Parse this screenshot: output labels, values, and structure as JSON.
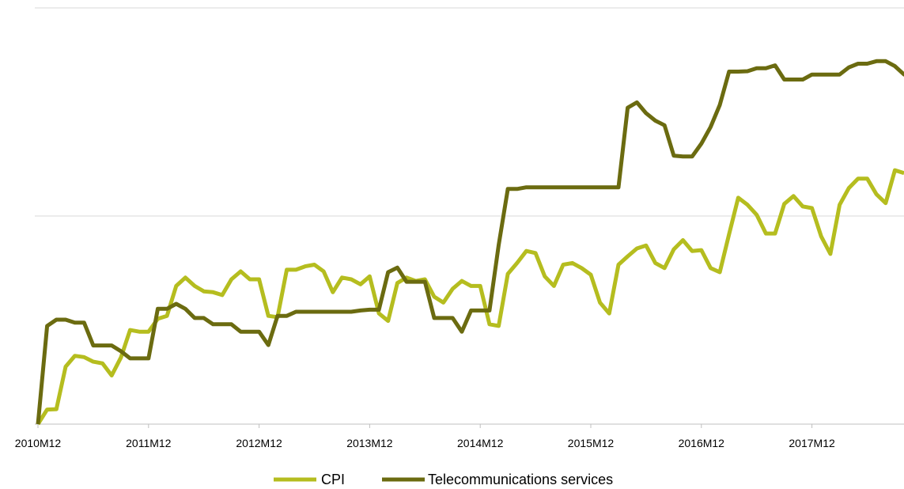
{
  "chart_data": {
    "type": "line",
    "title": "",
    "xlabel": "",
    "ylabel": "",
    "x_tick_labels": [
      "2010M12",
      "2011M12",
      "2012M12",
      "2013M12",
      "2014M12",
      "2015M12",
      "2016M12",
      "2017M12"
    ],
    "y_tick_labels_shown": false,
    "ylim": [
      0,
      100
    ],
    "grid": "horizontal",
    "legend_position": "bottom",
    "series": [
      {
        "name": "CPI",
        "color": "#B5BD1F",
        "values": [
          0,
          3.5,
          3.6,
          13.8,
          16.4,
          16.1,
          15.0,
          14.6,
          11.7,
          16.0,
          22.6,
          22.2,
          22.2,
          25.3,
          26.0,
          33.2,
          35.2,
          33.2,
          31.9,
          31.7,
          31.0,
          34.8,
          36.7,
          34.8,
          34.8,
          26.0,
          25.7,
          37.1,
          37.1,
          37.9,
          38.3,
          36.7,
          31.7,
          35.2,
          34.8,
          33.6,
          35.5,
          26.6,
          24.8,
          33.9,
          35.2,
          34.4,
          34.8,
          30.6,
          29.2,
          32.5,
          34.4,
          33.2,
          33.2,
          24.0,
          23.6,
          36.1,
          38.7,
          41.6,
          41.1,
          35.5,
          33.2,
          38.3,
          38.7,
          37.5,
          35.9,
          29.2,
          26.6,
          38.3,
          40.3,
          42.2,
          42.9,
          38.7,
          37.5,
          42.0,
          44.2,
          41.6,
          41.8,
          37.5,
          36.5,
          45.6,
          54.4,
          52.7,
          50.3,
          45.8,
          45.8,
          52.9,
          54.8,
          52.3,
          51.9,
          45.1,
          40.9,
          52.7,
          56.7,
          59.0,
          59.0,
          55.2,
          53.1,
          61.0,
          60.3
        ]
      },
      {
        "name": "Telecommunications services",
        "color": "#6B6B10",
        "values": [
          0,
          23.6,
          25.1,
          25.1,
          24.4,
          24.4,
          18.9,
          18.9,
          18.9,
          17.5,
          15.8,
          15.8,
          15.8,
          27.7,
          27.7,
          28.9,
          27.7,
          25.5,
          25.5,
          24.0,
          24.0,
          24.0,
          22.2,
          22.2,
          22.2,
          19.0,
          26.0,
          26.0,
          27.0,
          27.0,
          27.0,
          27.0,
          27.0,
          27.0,
          27.0,
          27.3,
          27.5,
          27.5,
          36.5,
          37.6,
          34.2,
          34.2,
          34.2,
          25.5,
          25.5,
          25.5,
          22.2,
          27.3,
          27.3,
          27.3,
          43.0,
          56.5,
          56.5,
          56.9,
          56.9,
          56.9,
          56.9,
          56.9,
          56.9,
          56.9,
          56.9,
          56.9,
          56.9,
          56.9,
          76.0,
          77.3,
          74.7,
          72.9,
          71.8,
          64.5,
          64.3,
          64.3,
          67.4,
          71.4,
          76.7,
          84.7,
          84.7,
          84.8,
          85.5,
          85.5,
          86.2,
          82.8,
          82.8,
          82.8,
          84.0,
          84.0,
          84.0,
          84.0,
          85.7,
          86.6,
          86.6,
          87.2,
          87.2,
          86.0,
          84.0,
          84.0,
          84.0
        ]
      }
    ]
  }
}
